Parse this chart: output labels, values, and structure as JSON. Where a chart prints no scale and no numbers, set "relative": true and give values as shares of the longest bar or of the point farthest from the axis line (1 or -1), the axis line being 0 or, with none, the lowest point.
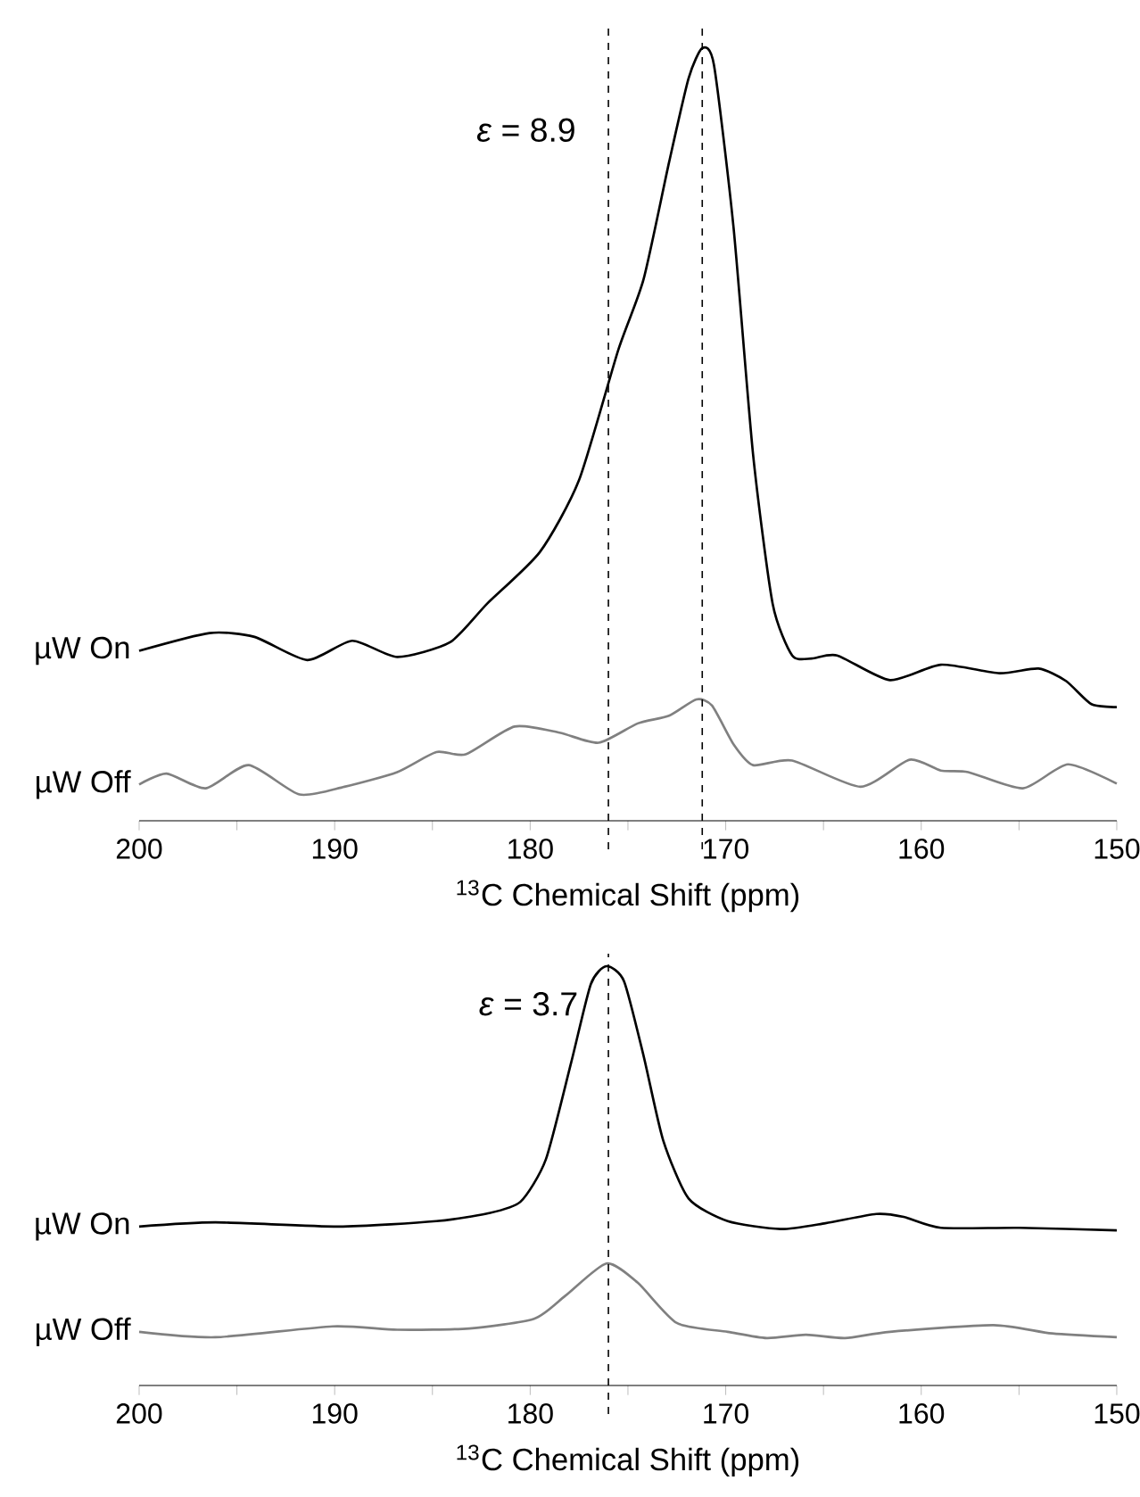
{
  "chart_data": [
    {
      "type": "line",
      "relative": true,
      "xlabel": "$^{13}$C Chemical Shift (ppm)",
      "annotations": [
        "*ε* = 8.9"
      ],
      "xlim": [
        200,
        150
      ],
      "xticks": [
        200,
        {
          "value": 195,
          "label": null
        },
        190,
        {
          "value": 185,
          "label": null
        },
        180,
        {
          "value": 175,
          "label": null
        },
        170,
        {
          "value": 165,
          "label": null
        },
        160,
        {
          "value": 155,
          "label": null
        },
        150
      ],
      "ref_lines": [
        {
          "axis": "x",
          "value": 176,
          "line_style": "dashed",
          "color": "#000000"
        },
        {
          "axis": "x",
          "value": 171.2,
          "line_style": "dashed",
          "color": "#000000"
        }
      ],
      "legend": false,
      "grid": false,
      "line_style": "solid",
      "marker": "none",
      "series": [
        {
          "name": "µW On",
          "color": "#000000",
          "x": [
            200,
            196.4,
            194.1,
            191.4,
            189.1,
            186.8,
            184.1,
            182.2,
            179.5,
            177.5,
            175.5,
            174.2,
            172.9,
            171.9,
            171.2,
            170.6,
            169.6,
            168.6,
            167.6,
            166.6,
            165.6,
            164.3,
            161.6,
            159.0,
            156.0,
            154.0,
            152.6,
            151.3,
            150.0
          ],
          "values": [
            0.22,
            0.243,
            0.238,
            0.208,
            0.233,
            0.212,
            0.231,
            0.281,
            0.348,
            0.441,
            0.609,
            0.701,
            0.852,
            0.961,
            1.0,
            0.978,
            0.768,
            0.474,
            0.281,
            0.214,
            0.21,
            0.214,
            0.182,
            0.202,
            0.191,
            0.197,
            0.181,
            0.151,
            0.147
          ]
        },
        {
          "name": "µW Off",
          "color": "#808080",
          "x": [
            200,
            198.6,
            196.6,
            194.4,
            191.8,
            189.5,
            186.8,
            184.8,
            183.3,
            180.8,
            178.5,
            176.5,
            174.5,
            172.9,
            171.5,
            170.7,
            169.6,
            168.6,
            166.6,
            163.1,
            160.6,
            159.0,
            157.6,
            154.8,
            152.5,
            150.0
          ],
          "values": [
            0.047,
            0.061,
            0.042,
            0.072,
            0.034,
            0.044,
            0.063,
            0.089,
            0.086,
            0.122,
            0.114,
            0.101,
            0.126,
            0.136,
            0.157,
            0.149,
            0.099,
            0.072,
            0.078,
            0.044,
            0.079,
            0.065,
            0.063,
            0.042,
            0.073,
            0.048
          ]
        }
      ]
    },
    {
      "type": "line",
      "relative": true,
      "xlabel": "$^{13}$C Chemical Shift (ppm)",
      "annotations": [
        "*ε* = 3.7"
      ],
      "xlim": [
        200,
        150
      ],
      "xticks": [
        200,
        {
          "value": 195,
          "label": null
        },
        190,
        {
          "value": 185,
          "label": null
        },
        180,
        {
          "value": 175,
          "label": null
        },
        170,
        {
          "value": 165,
          "label": null
        },
        160,
        {
          "value": 155,
          "label": null
        },
        150
      ],
      "ref_lines": [
        {
          "axis": "x",
          "value": 176,
          "line_style": "dashed",
          "color": "#000000"
        }
      ],
      "legend": false,
      "grid": false,
      "line_style": "solid",
      "marker": "none",
      "series": [
        {
          "name": "µW On",
          "color": "#000000",
          "x": [
            200,
            196.1,
            189.8,
            184.8,
            182.2,
            180.5,
            179.2,
            177.9,
            176.9,
            176.1,
            175.2,
            174.2,
            173.2,
            171.9,
            169.9,
            167.2,
            164.9,
            162.3,
            160.9,
            159.0,
            155.0,
            150.0
          ],
          "values": [
            0.379,
            0.389,
            0.379,
            0.392,
            0.41,
            0.438,
            0.539,
            0.771,
            0.957,
            1.0,
            0.964,
            0.786,
            0.585,
            0.446,
            0.392,
            0.373,
            0.387,
            0.409,
            0.402,
            0.376,
            0.376,
            0.37
          ]
        },
        {
          "name": "µW Off",
          "color": "#808080",
          "x": [
            200,
            196.1,
            190.1,
            186.8,
            183.1,
            179.8,
            178.2,
            176.1,
            174.5,
            172.5,
            169.9,
            167.9,
            165.9,
            163.9,
            161.6,
            156.3,
            153.3,
            150.0
          ],
          "values": [
            0.128,
            0.115,
            0.141,
            0.133,
            0.136,
            0.159,
            0.214,
            0.291,
            0.245,
            0.149,
            0.128,
            0.113,
            0.121,
            0.113,
            0.128,
            0.144,
            0.124,
            0.115
          ]
        }
      ]
    }
  ]
}
